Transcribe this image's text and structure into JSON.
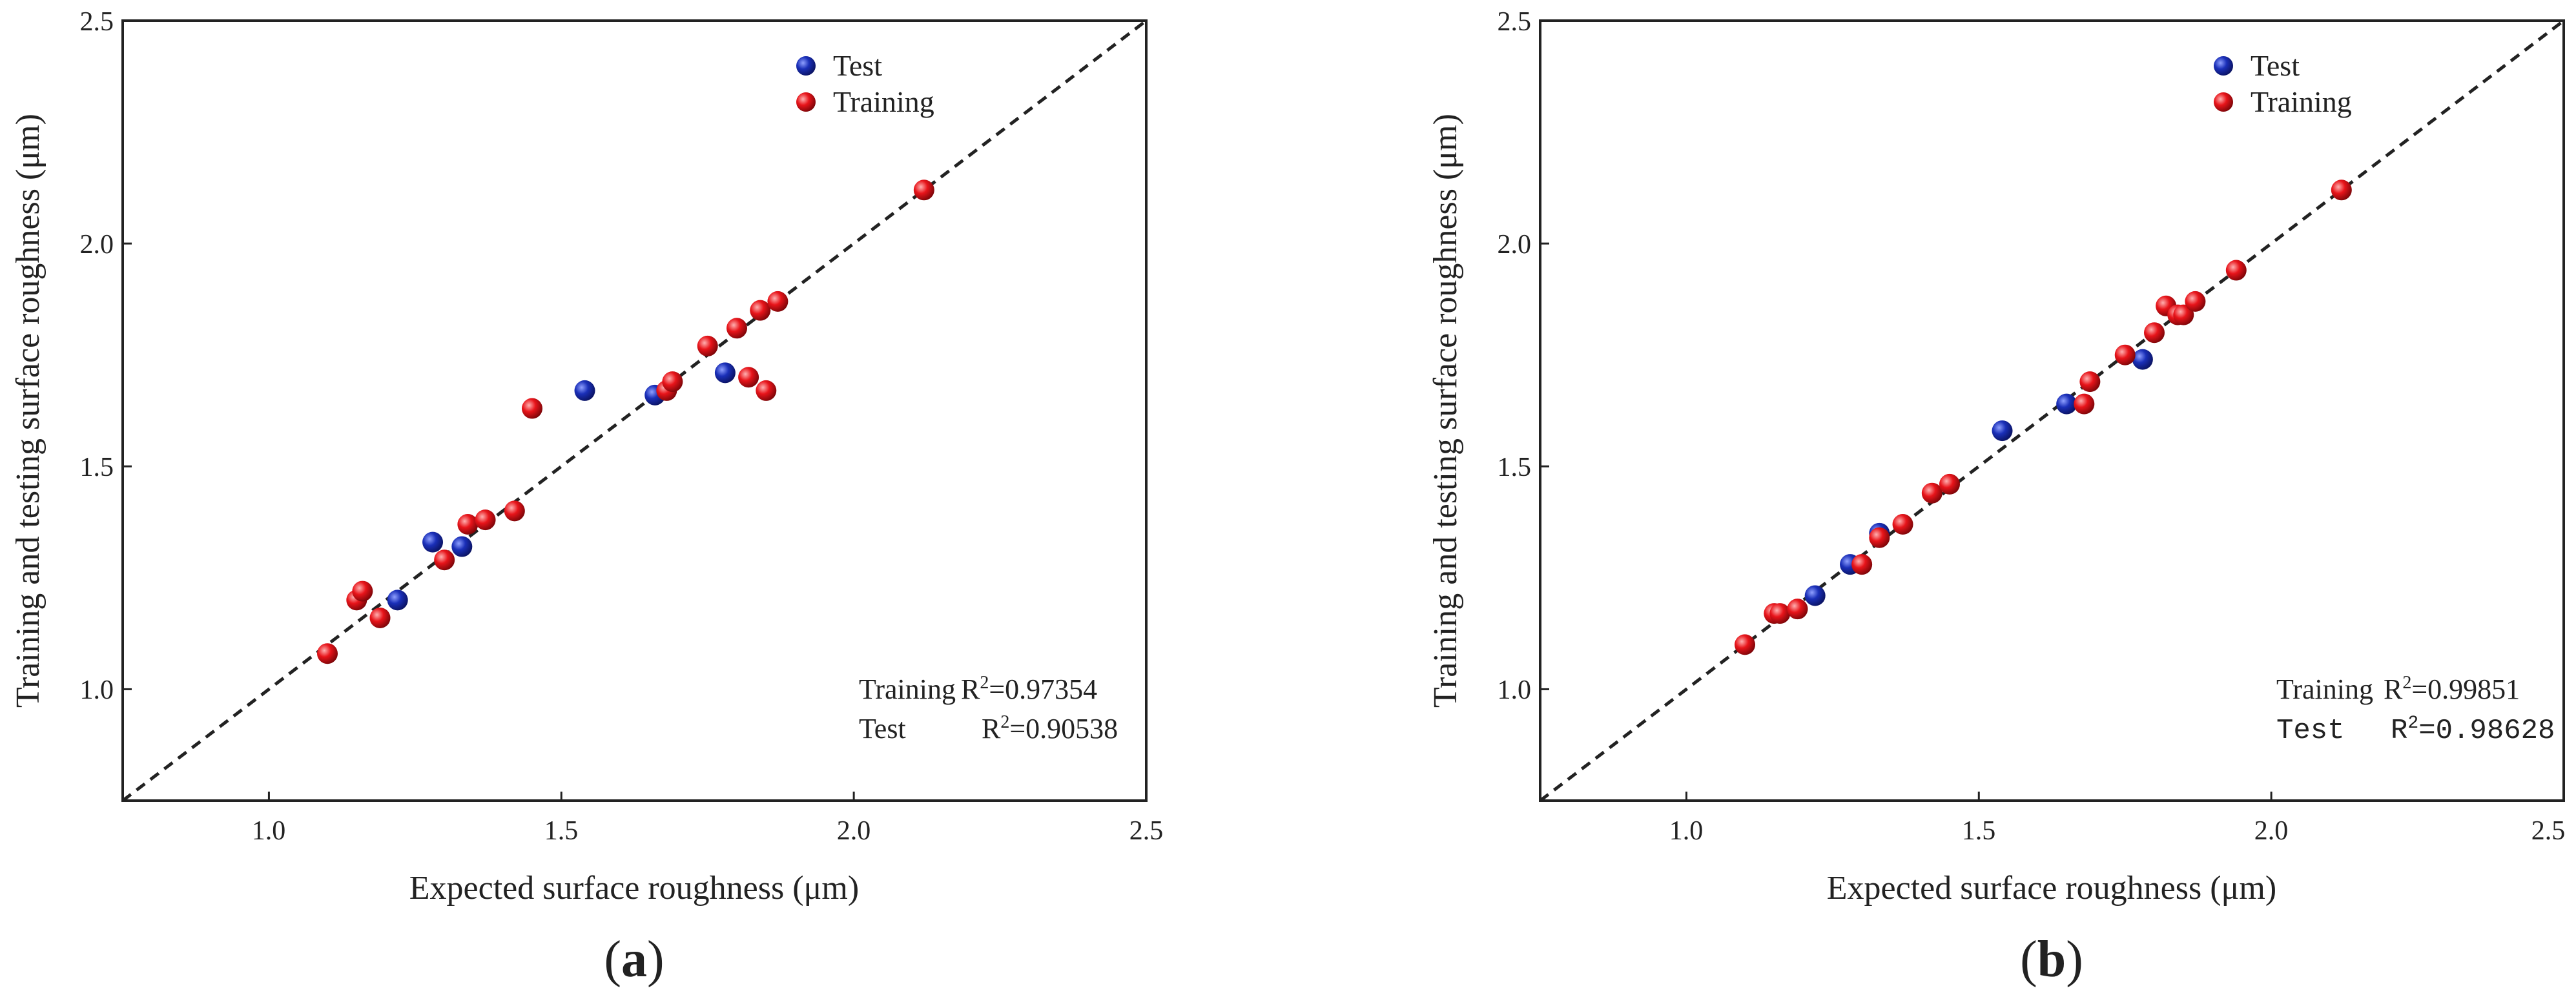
{
  "chart_data": [
    {
      "type": "scatter",
      "panel_label": "a",
      "xlabel": "Expected surface roughness  (μm)",
      "ylabel": "Training and testing surface roughness  (μm)",
      "xlim": [
        0.75,
        2.5
      ],
      "ylim": [
        0.75,
        2.5
      ],
      "xticks": [
        1.0,
        1.5,
        2.0,
        2.5
      ],
      "yticks": [
        1.0,
        1.5,
        2.0,
        2.5
      ],
      "xtick_labels": [
        "1.0",
        "1.5",
        "2.0",
        "2.5"
      ],
      "ytick_labels": [
        "1.0",
        "1.5",
        "2.0",
        "2.5"
      ],
      "reference_line": "y = x",
      "legend": {
        "placement": "top-right",
        "entries": [
          "Test",
          "Training"
        ]
      },
      "stats": {
        "training_name": "Training",
        "training_value": "=0.97354",
        "test_name": "Test",
        "test_value": "=0.90538",
        "r_symbol": "R",
        "r_exp": "2"
      },
      "series": [
        {
          "name": "Test",
          "color": "#1a2fb8",
          "points": [
            [
              1.22,
              1.2
            ],
            [
              1.28,
              1.33
            ],
            [
              1.33,
              1.32
            ],
            [
              1.54,
              1.67
            ],
            [
              1.66,
              1.66
            ],
            [
              1.78,
              1.71
            ]
          ]
        },
        {
          "name": "Training",
          "color": "#e8141a",
          "points": [
            [
              1.1,
              1.08
            ],
            [
              1.15,
              1.2
            ],
            [
              1.16,
              1.22
            ],
            [
              1.19,
              1.16
            ],
            [
              1.3,
              1.29
            ],
            [
              1.34,
              1.37
            ],
            [
              1.37,
              1.38
            ],
            [
              1.42,
              1.4
            ],
            [
              1.45,
              1.63
            ],
            [
              1.68,
              1.67
            ],
            [
              1.69,
              1.69
            ],
            [
              1.75,
              1.77
            ],
            [
              1.8,
              1.81
            ],
            [
              1.82,
              1.7
            ],
            [
              1.84,
              1.85
            ],
            [
              1.85,
              1.67
            ],
            [
              1.87,
              1.87
            ],
            [
              2.12,
              2.12
            ]
          ]
        }
      ]
    },
    {
      "type": "scatter",
      "panel_label": "b",
      "xlabel": "Expected surface roughness  (μm)",
      "ylabel": "Training and testing surface roughness  (μm)",
      "xlim": [
        0.75,
        2.5
      ],
      "ylim": [
        0.75,
        2.5
      ],
      "xticks": [
        1.0,
        1.5,
        2.0,
        2.5
      ],
      "yticks": [
        1.0,
        1.5,
        2.0,
        2.5
      ],
      "xtick_labels": [
        "1.0",
        "1.5",
        "2.0",
        "2.5"
      ],
      "ytick_labels": [
        "1.0",
        "1.5",
        "2.0",
        "2.5"
      ],
      "reference_line": "y = x",
      "legend": {
        "placement": "top-right",
        "entries": [
          "Test",
          "Training"
        ]
      },
      "stats": {
        "training_name": "Training",
        "training_value": "=0.99851",
        "test_name": "Test",
        "test_value": "=0.98628",
        "r_symbol": "R",
        "r_exp": "2"
      },
      "series": [
        {
          "name": "Test",
          "color": "#1a2fb8",
          "points": [
            [
              1.22,
              1.21
            ],
            [
              1.28,
              1.28
            ],
            [
              1.33,
              1.35
            ],
            [
              1.54,
              1.58
            ],
            [
              1.65,
              1.64
            ],
            [
              1.78,
              1.74
            ]
          ]
        },
        {
          "name": "Training",
          "color": "#e8141a",
          "points": [
            [
              1.1,
              1.1
            ],
            [
              1.15,
              1.17
            ],
            [
              1.16,
              1.17
            ],
            [
              1.19,
              1.18
            ],
            [
              1.3,
              1.28
            ],
            [
              1.33,
              1.34
            ],
            [
              1.37,
              1.37
            ],
            [
              1.42,
              1.44
            ],
            [
              1.45,
              1.46
            ],
            [
              1.68,
              1.64
            ],
            [
              1.69,
              1.69
            ],
            [
              1.75,
              1.75
            ],
            [
              1.8,
              1.8
            ],
            [
              1.82,
              1.86
            ],
            [
              1.84,
              1.84
            ],
            [
              1.85,
              1.84
            ],
            [
              1.87,
              1.87
            ],
            [
              1.94,
              1.94
            ],
            [
              2.12,
              2.12
            ]
          ]
        }
      ]
    }
  ]
}
